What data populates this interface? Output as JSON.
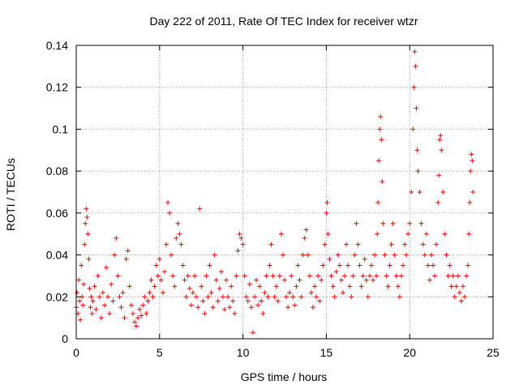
{
  "chart_data": {
    "type": "scatter",
    "title": "Day 222 of 2011, Rate Of TEC Index for receiver wtzr",
    "xlabel": "GPS time / hours",
    "ylabel": "ROTI / TECUs",
    "xlim": [
      0,
      25
    ],
    "ylim": [
      0,
      0.14
    ],
    "xticks": [
      0,
      5,
      10,
      15,
      20,
      25
    ],
    "yticks": [
      0,
      0.02,
      0.04,
      0.06,
      0.08,
      0.1,
      0.12,
      0.14
    ],
    "xtick_labels": [
      "0",
      "5",
      "10",
      "15",
      "20",
      "25"
    ],
    "ytick_labels": [
      "0",
      "0.02",
      "0.04",
      "0.06",
      "0.08",
      "0.1",
      "0.12",
      "0.14"
    ],
    "grid": true,
    "marker": "+",
    "color": "#ff0000",
    "series": [
      {
        "points": [
          [
            0.0,
            0.015
          ],
          [
            0.05,
            0.022
          ],
          [
            0.1,
            0.012
          ],
          [
            0.15,
            0.028
          ],
          [
            0.2,
            0.018
          ],
          [
            0.25,
            0.009
          ],
          [
            0.3,
            0.035
          ],
          [
            0.35,
            0.02
          ],
          [
            0.4,
            0.016
          ],
          [
            0.45,
            0.026
          ],
          [
            0.5,
            0.045
          ],
          [
            0.55,
            0.055
          ],
          [
            0.6,
            0.062
          ],
          [
            0.65,
            0.058
          ],
          [
            0.7,
            0.05
          ],
          [
            0.75,
            0.038
          ],
          [
            0.8,
            0.024
          ],
          [
            0.85,
            0.015
          ],
          [
            0.9,
            0.02
          ],
          [
            0.95,
            0.012
          ],
          [
            1.0,
            0.018
          ],
          [
            1.1,
            0.025
          ],
          [
            1.2,
            0.014
          ],
          [
            1.3,
            0.03
          ],
          [
            1.4,
            0.02
          ],
          [
            1.5,
            0.01
          ],
          [
            1.6,
            0.022
          ],
          [
            1.7,
            0.016
          ],
          [
            1.8,
            0.034
          ],
          [
            1.9,
            0.02
          ],
          [
            2.0,
            0.012
          ],
          [
            2.1,
            0.026
          ],
          [
            2.2,
            0.018
          ],
          [
            2.3,
            0.04
          ],
          [
            2.4,
            0.048
          ],
          [
            2.5,
            0.03
          ],
          [
            2.6,
            0.02
          ],
          [
            2.7,
            0.015
          ],
          [
            2.8,
            0.022
          ],
          [
            2.9,
            0.01
          ],
          [
            3.0,
            0.038
          ],
          [
            3.1,
            0.042
          ],
          [
            3.2,
            0.025
          ],
          [
            3.3,
            0.016
          ],
          [
            3.4,
            0.012
          ],
          [
            3.5,
            0.008
          ],
          [
            3.6,
            0.006
          ],
          [
            3.7,
            0.01
          ],
          [
            3.8,
            0.014
          ],
          [
            3.9,
            0.011
          ],
          [
            4.0,
            0.016
          ],
          [
            4.1,
            0.02
          ],
          [
            4.2,
            0.012
          ],
          [
            4.3,
            0.018
          ],
          [
            4.4,
            0.022
          ],
          [
            4.5,
            0.028
          ],
          [
            4.6,
            0.02
          ],
          [
            4.7,
            0.025
          ],
          [
            4.8,
            0.035
          ],
          [
            4.9,
            0.03
          ],
          [
            5.0,
            0.038
          ],
          [
            5.1,
            0.028
          ],
          [
            5.2,
            0.022
          ],
          [
            5.3,
            0.032
          ],
          [
            5.4,
            0.045
          ],
          [
            5.5,
            0.065
          ],
          [
            5.6,
            0.06
          ],
          [
            5.7,
            0.04
          ],
          [
            5.8,
            0.03
          ],
          [
            5.9,
            0.025
          ],
          [
            6.0,
            0.048
          ],
          [
            6.1,
            0.055
          ],
          [
            6.2,
            0.05
          ],
          [
            6.3,
            0.045
          ],
          [
            6.4,
            0.035
          ],
          [
            6.5,
            0.028
          ],
          [
            6.6,
            0.02
          ],
          [
            6.7,
            0.03
          ],
          [
            6.8,
            0.024
          ],
          [
            6.9,
            0.016
          ],
          [
            7.0,
            0.022
          ],
          [
            7.1,
            0.03
          ],
          [
            7.2,
            0.02
          ],
          [
            7.3,
            0.015
          ],
          [
            7.4,
            0.062
          ],
          [
            7.5,
            0.025
          ],
          [
            7.6,
            0.018
          ],
          [
            7.7,
            0.012
          ],
          [
            7.8,
            0.03
          ],
          [
            7.9,
            0.02
          ],
          [
            8.0,
            0.035
          ],
          [
            8.1,
            0.022
          ],
          [
            8.2,
            0.015
          ],
          [
            8.3,
            0.04
          ],
          [
            8.4,
            0.028
          ],
          [
            8.5,
            0.018
          ],
          [
            8.6,
            0.024
          ],
          [
            8.7,
            0.032
          ],
          [
            8.8,
            0.02
          ],
          [
            8.9,
            0.014
          ],
          [
            9.0,
            0.028
          ],
          [
            9.1,
            0.02
          ],
          [
            9.2,
            0.015
          ],
          [
            9.3,
            0.025
          ],
          [
            9.4,
            0.018
          ],
          [
            9.5,
            0.012
          ],
          [
            9.6,
            0.03
          ],
          [
            9.7,
            0.042
          ],
          [
            9.8,
            0.05
          ],
          [
            9.9,
            0.048
          ],
          [
            10.0,
            0.045
          ],
          [
            10.1,
            0.03
          ],
          [
            10.2,
            0.02
          ],
          [
            10.3,
            0.018
          ],
          [
            10.4,
            0.026
          ],
          [
            10.5,
            0.015
          ],
          [
            10.6,
            0.003
          ],
          [
            10.7,
            0.02
          ],
          [
            10.8,
            0.028
          ],
          [
            10.9,
            0.016
          ],
          [
            11.0,
            0.025
          ],
          [
            11.1,
            0.018
          ],
          [
            11.2,
            0.012
          ],
          [
            11.3,
            0.022
          ],
          [
            11.4,
            0.03
          ],
          [
            11.5,
            0.02
          ],
          [
            11.6,
            0.035
          ],
          [
            11.7,
            0.045
          ],
          [
            11.8,
            0.03
          ],
          [
            11.9,
            0.02
          ],
          [
            12.0,
            0.025
          ],
          [
            12.1,
            0.018
          ],
          [
            12.2,
            0.03
          ],
          [
            12.3,
            0.05
          ],
          [
            12.4,
            0.04
          ],
          [
            12.5,
            0.028
          ],
          [
            12.6,
            0.02
          ],
          [
            12.7,
            0.015
          ],
          [
            12.8,
            0.022
          ],
          [
            12.9,
            0.03
          ],
          [
            13.0,
            0.02
          ],
          [
            13.1,
            0.016
          ],
          [
            13.2,
            0.025
          ],
          [
            13.3,
            0.035
          ],
          [
            13.4,
            0.028
          ],
          [
            13.5,
            0.02
          ],
          [
            13.6,
            0.04
          ],
          [
            13.7,
            0.048
          ],
          [
            13.8,
            0.052
          ],
          [
            13.9,
            0.04
          ],
          [
            14.0,
            0.03
          ],
          [
            14.1,
            0.022
          ],
          [
            14.2,
            0.015
          ],
          [
            14.3,
            0.025
          ],
          [
            14.4,
            0.02
          ],
          [
            14.5,
            0.03
          ],
          [
            14.6,
            0.018
          ],
          [
            14.7,
            0.028
          ],
          [
            14.8,
            0.035
          ],
          [
            14.9,
            0.045
          ],
          [
            15.0,
            0.06
          ],
          [
            15.05,
            0.065
          ],
          [
            15.1,
            0.05
          ],
          [
            15.2,
            0.038
          ],
          [
            15.3,
            0.03
          ],
          [
            15.4,
            0.025
          ],
          [
            15.5,
            0.02
          ],
          [
            15.6,
            0.032
          ],
          [
            15.7,
            0.04
          ],
          [
            15.8,
            0.035
          ],
          [
            15.9,
            0.028
          ],
          [
            16.0,
            0.022
          ],
          [
            16.1,
            0.03
          ],
          [
            16.2,
            0.045
          ],
          [
            16.3,
            0.035
          ],
          [
            16.4,
            0.025
          ],
          [
            16.5,
            0.02
          ],
          [
            16.6,
            0.03
          ],
          [
            16.7,
            0.04
          ],
          [
            16.8,
            0.055
          ],
          [
            16.9,
            0.045
          ],
          [
            17.0,
            0.035
          ],
          [
            17.1,
            0.025
          ],
          [
            17.2,
            0.03
          ],
          [
            17.3,
            0.038
          ],
          [
            17.4,
            0.028
          ],
          [
            17.5,
            0.02
          ],
          [
            17.6,
            0.03
          ],
          [
            17.7,
            0.035
          ],
          [
            17.8,
            0.028
          ],
          [
            17.9,
            0.04
          ],
          [
            18.0,
            0.03
          ],
          [
            18.05,
            0.05
          ],
          [
            18.1,
            0.065
          ],
          [
            18.15,
            0.085
          ],
          [
            18.2,
            0.1
          ],
          [
            18.25,
            0.106
          ],
          [
            18.3,
            0.095
          ],
          [
            18.35,
            0.075
          ],
          [
            18.4,
            0.055
          ],
          [
            18.5,
            0.04
          ],
          [
            18.6,
            0.03
          ],
          [
            18.7,
            0.025
          ],
          [
            18.8,
            0.035
          ],
          [
            18.9,
            0.045
          ],
          [
            19.0,
            0.055
          ],
          [
            19.1,
            0.04
          ],
          [
            19.2,
            0.03
          ],
          [
            19.3,
            0.025
          ],
          [
            19.4,
            0.02
          ],
          [
            19.5,
            0.03
          ],
          [
            19.6,
            0.035
          ],
          [
            19.7,
            0.045
          ],
          [
            19.8,
            0.04
          ],
          [
            19.9,
            0.05
          ],
          [
            20.0,
            0.055
          ],
          [
            20.1,
            0.07
          ],
          [
            20.2,
            0.1
          ],
          [
            20.25,
            0.12
          ],
          [
            20.3,
            0.137
          ],
          [
            20.35,
            0.13
          ],
          [
            20.4,
            0.11
          ],
          [
            20.45,
            0.09
          ],
          [
            20.5,
            0.08
          ],
          [
            20.6,
            0.07
          ],
          [
            20.7,
            0.055
          ],
          [
            20.8,
            0.045
          ],
          [
            20.9,
            0.04
          ],
          [
            21.0,
            0.05
          ],
          [
            21.1,
            0.035
          ],
          [
            21.2,
            0.028
          ],
          [
            21.3,
            0.04
          ],
          [
            21.4,
            0.035
          ],
          [
            21.5,
            0.03
          ],
          [
            21.6,
            0.045
          ],
          [
            21.7,
            0.065
          ],
          [
            21.75,
            0.078
          ],
          [
            21.8,
            0.095
          ],
          [
            21.85,
            0.097
          ],
          [
            21.9,
            0.09
          ],
          [
            22.0,
            0.07
          ],
          [
            22.1,
            0.05
          ],
          [
            22.2,
            0.04
          ],
          [
            22.3,
            0.03
          ],
          [
            22.4,
            0.035
          ],
          [
            22.5,
            0.025
          ],
          [
            22.6,
            0.03
          ],
          [
            22.7,
            0.02
          ],
          [
            22.8,
            0.025
          ],
          [
            22.9,
            0.03
          ],
          [
            23.0,
            0.022
          ],
          [
            23.1,
            0.018
          ],
          [
            23.2,
            0.025
          ],
          [
            23.3,
            0.02
          ],
          [
            23.4,
            0.03
          ],
          [
            23.5,
            0.035
          ],
          [
            23.55,
            0.05
          ],
          [
            23.6,
            0.065
          ],
          [
            23.65,
            0.08
          ],
          [
            23.7,
            0.088
          ],
          [
            23.75,
            0.085
          ],
          [
            23.8,
            0.07
          ]
        ]
      }
    ]
  }
}
